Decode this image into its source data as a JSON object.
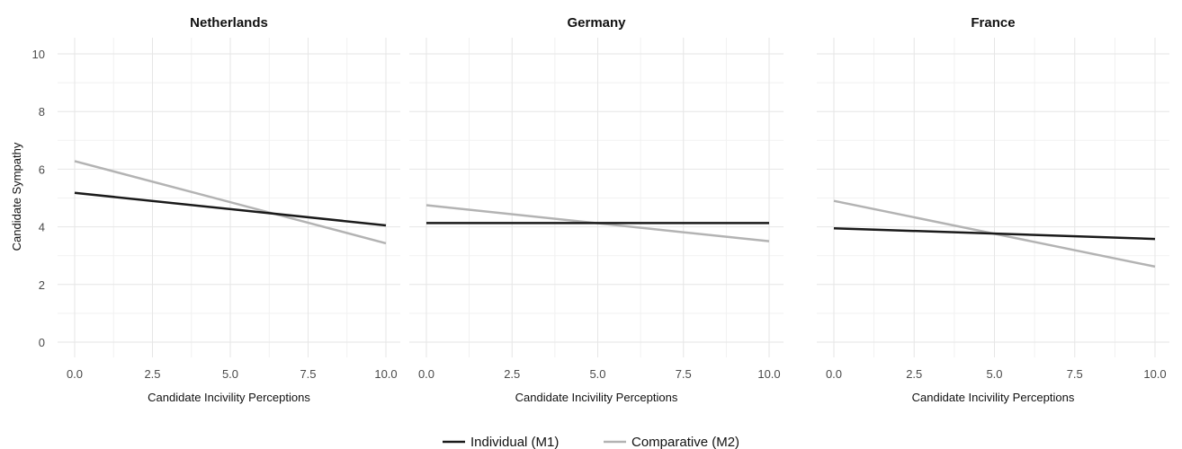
{
  "chart_data": {
    "type": "line",
    "ylabel": "Candidate Sympathy",
    "ylim": [
      0,
      10
    ],
    "xlim": [
      0,
      10
    ],
    "x_ticks": [
      "0.0",
      "2.5",
      "5.0",
      "7.5",
      "10.0"
    ],
    "y_ticks": [
      "0",
      "2",
      "4",
      "6",
      "8",
      "10"
    ],
    "grid": true,
    "legend_position": "bottom",
    "legend": [
      {
        "name": "Individual (M1)",
        "color": "#1a1a1a"
      },
      {
        "name": "Comparative (M2)",
        "color": "#b3b3b3"
      }
    ],
    "panels": [
      {
        "title": "Netherlands",
        "xlabel": "Candidate Incivility Perceptions",
        "series": [
          {
            "name": "Individual (M1)",
            "x": [
              0,
              10
            ],
            "y": [
              5.18,
              4.05
            ]
          },
          {
            "name": "Comparative (M2)",
            "x": [
              0,
              10
            ],
            "y": [
              6.28,
              3.43
            ]
          }
        ]
      },
      {
        "title": "Germany",
        "xlabel": "Candidate Incivility Perceptions",
        "series": [
          {
            "name": "Individual (M1)",
            "x": [
              0,
              10
            ],
            "y": [
              4.13,
              4.13
            ]
          },
          {
            "name": "Comparative (M2)",
            "x": [
              0,
              10
            ],
            "y": [
              4.75,
              3.5
            ]
          }
        ]
      },
      {
        "title": "France",
        "xlabel": "Candidate Incivility Perceptions",
        "series": [
          {
            "name": "Individual (M1)",
            "x": [
              0,
              10
            ],
            "y": [
              3.95,
              3.58
            ]
          },
          {
            "name": "Comparative (M2)",
            "x": [
              0,
              10
            ],
            "y": [
              4.9,
              2.62
            ]
          }
        ]
      }
    ]
  }
}
